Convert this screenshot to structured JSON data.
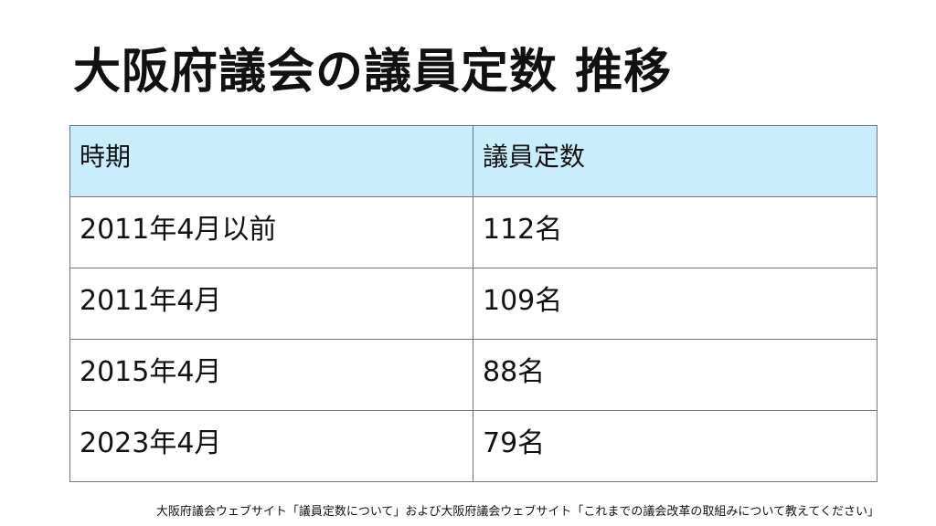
{
  "title": "大阪府議会の議員定数 推移",
  "table": {
    "headers": [
      "時期",
      "議員定数"
    ],
    "rows": [
      [
        "2011年4月以前",
        "112名"
      ],
      [
        "2011年4月",
        "109名"
      ],
      [
        "2015年4月",
        "88名"
      ],
      [
        "2023年4月",
        "79名"
      ]
    ],
    "header_bg": "#c9edfc"
  },
  "source": "大阪府議会ウェブサイト「議員定数について」および大阪府議会ウェブサイト「これまでの議会改革の取組みについて教えてください」"
}
